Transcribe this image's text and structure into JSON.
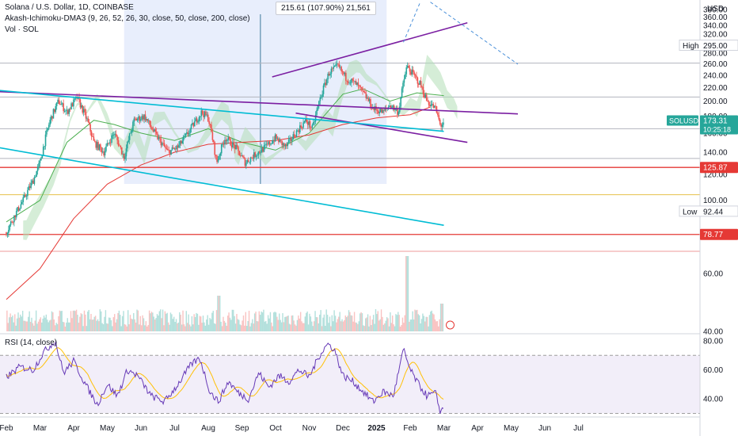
{
  "header": {
    "title": "Solana / U.S. Dollar, 1D, COINBASE",
    "indicator": "Akash-Ichimoku-DMA3 (9, 26, 52, 26, 30, close, 50, close, 200, close)",
    "volume": "Vol · SOL"
  },
  "measure_label": "215.61 (107.90%) 21,561",
  "currency": "USD",
  "rsi_label": "RSI (14, close)",
  "colors": {
    "up": "#26a69a",
    "down": "#ef5350",
    "cloud": "#b3dfb6",
    "ma50": "#4caf50",
    "ma200": "#e53935",
    "trend_purple": "#7b1fa2",
    "trend_cyan": "#00bcd4",
    "rsi_line": "#673ab7",
    "rsi_ma": "#ffc107",
    "highlight": "#e8eefc"
  },
  "chart_data": [
    {
      "type": "candlestick",
      "symbol": "SOLUSD",
      "ylabel": "USD",
      "ylim": [
        36,
        400
      ],
      "ytick_labels": [
        "40.00",
        "60.00",
        "80.00",
        "100.00",
        "120.00",
        "140.00",
        "160.00",
        "180.00",
        "200.00",
        "220.00",
        "240.00",
        "260.00",
        "280.00",
        "300.00",
        "320.00",
        "340.00",
        "360.00",
        "380.00"
      ],
      "x_labels": [
        "Feb",
        "Mar",
        "Apr",
        "May",
        "Jun",
        "Jul",
        "Aug",
        "Sep",
        "Oct",
        "Nov",
        "Dec",
        "2025",
        "Feb",
        "Mar",
        "Apr",
        "May",
        "Jun",
        "Jul"
      ],
      "price_points": [
        {
          "m": 0.0,
          "p": 80
        },
        {
          "m": 0.5,
          "p": 100
        },
        {
          "m": 0.8,
          "p": 115
        },
        {
          "m": 1.0,
          "p": 130
        },
        {
          "m": 1.3,
          "p": 175
        },
        {
          "m": 1.55,
          "p": 200
        },
        {
          "m": 1.8,
          "p": 185
        },
        {
          "m": 2.1,
          "p": 205
        },
        {
          "m": 2.4,
          "p": 175
        },
        {
          "m": 2.6,
          "p": 150
        },
        {
          "m": 2.9,
          "p": 140
        },
        {
          "m": 3.2,
          "p": 160
        },
        {
          "m": 3.5,
          "p": 135
        },
        {
          "m": 3.8,
          "p": 175
        },
        {
          "m": 4.1,
          "p": 180
        },
        {
          "m": 4.4,
          "p": 160
        },
        {
          "m": 4.8,
          "p": 140
        },
        {
          "m": 5.1,
          "p": 145
        },
        {
          "m": 5.4,
          "p": 160
        },
        {
          "m": 5.8,
          "p": 185
        },
        {
          "m": 6.0,
          "p": 178
        },
        {
          "m": 6.25,
          "p": 130
        },
        {
          "m": 6.5,
          "p": 155
        },
        {
          "m": 6.8,
          "p": 145
        },
        {
          "m": 7.1,
          "p": 130
        },
        {
          "m": 7.4,
          "p": 138
        },
        {
          "m": 7.7,
          "p": 145
        },
        {
          "m": 8.0,
          "p": 155
        },
        {
          "m": 8.3,
          "p": 145
        },
        {
          "m": 8.6,
          "p": 160
        },
        {
          "m": 8.9,
          "p": 175
        },
        {
          "m": 9.1,
          "p": 165
        },
        {
          "m": 9.3,
          "p": 200
        },
        {
          "m": 9.6,
          "p": 245
        },
        {
          "m": 9.85,
          "p": 255
        },
        {
          "m": 10.1,
          "p": 235
        },
        {
          "m": 10.4,
          "p": 225
        },
        {
          "m": 10.7,
          "p": 205
        },
        {
          "m": 10.9,
          "p": 190
        },
        {
          "m": 11.2,
          "p": 185
        },
        {
          "m": 11.4,
          "p": 195
        },
        {
          "m": 11.65,
          "p": 185
        },
        {
          "m": 11.9,
          "p": 255
        },
        {
          "m": 12.1,
          "p": 240
        },
        {
          "m": 12.3,
          "p": 225
        },
        {
          "m": 12.5,
          "p": 200
        },
        {
          "m": 12.75,
          "p": 190
        },
        {
          "m": 12.9,
          "p": 168
        },
        {
          "m": 13.0,
          "p": 173
        }
      ],
      "ma50_points": [
        {
          "m": 0,
          "p": 86
        },
        {
          "m": 1,
          "p": 100
        },
        {
          "m": 1.8,
          "p": 150
        },
        {
          "m": 2.6,
          "p": 175
        },
        {
          "m": 3.2,
          "p": 170
        },
        {
          "m": 4,
          "p": 160
        },
        {
          "m": 5,
          "p": 152
        },
        {
          "m": 6,
          "p": 165
        },
        {
          "m": 7,
          "p": 150
        },
        {
          "m": 8,
          "p": 142
        },
        {
          "m": 9,
          "p": 160
        },
        {
          "m": 10,
          "p": 210
        },
        {
          "m": 10.6,
          "p": 218
        },
        {
          "m": 11.4,
          "p": 200
        },
        {
          "m": 12.2,
          "p": 212
        },
        {
          "m": 13,
          "p": 208
        }
      ],
      "ma200_points": [
        {
          "m": 0,
          "p": 50
        },
        {
          "m": 1,
          "p": 62
        },
        {
          "m": 2,
          "p": 88
        },
        {
          "m": 3,
          "p": 112
        },
        {
          "m": 4,
          "p": 128
        },
        {
          "m": 5,
          "p": 140
        },
        {
          "m": 6,
          "p": 148
        },
        {
          "m": 7,
          "p": 150
        },
        {
          "m": 8,
          "p": 152
        },
        {
          "m": 9,
          "p": 158
        },
        {
          "m": 10,
          "p": 170
        },
        {
          "m": 11,
          "p": 178
        },
        {
          "m": 12,
          "p": 182
        },
        {
          "m": 12.6,
          "p": 192
        }
      ],
      "horizontal_levels": [
        {
          "price": 261,
          "color": "#b2b5be"
        },
        {
          "price": 206,
          "color": "#b2b5be"
        },
        {
          "price": 165,
          "color": "#b2b5be"
        },
        {
          "price": 134,
          "color": "#b2b5be"
        },
        {
          "price": 125.87,
          "color": "#e53935"
        },
        {
          "price": 104,
          "color": "#e6c14a"
        },
        {
          "price": 78.77,
          "color": "#e53935"
        },
        {
          "price": 70,
          "color": "#ef9a9a"
        }
      ],
      "trendlines": [
        {
          "color": "#7b1fa2",
          "from": {
            "m": -0.3,
            "p": 214
          },
          "to": {
            "m": 15.2,
            "p": 183
          }
        },
        {
          "color": "#7b1fa2",
          "from": {
            "m": 7.9,
            "p": 237
          },
          "to": {
            "m": 13.7,
            "p": 346
          }
        },
        {
          "color": "#7b1fa2",
          "from": {
            "m": 8.6,
            "p": 184
          },
          "to": {
            "m": 13.7,
            "p": 150
          }
        },
        {
          "color": "#00bcd4",
          "from": {
            "m": -0.3,
            "p": 216
          },
          "to": {
            "m": 13.0,
            "p": 162
          }
        },
        {
          "color": "#00bcd4",
          "from": {
            "m": -0.3,
            "p": 145
          },
          "to": {
            "m": 13.0,
            "p": 84
          }
        }
      ],
      "dashed_lines": [
        {
          "color": "#4a90d9",
          "from": {
            "m": 11.8,
            "p": 302
          },
          "to": {
            "m": 12.3,
            "p": 400
          }
        },
        {
          "color": "#4a90d9",
          "from": {
            "m": 12.6,
            "p": 400
          },
          "to": {
            "m": 15.2,
            "p": 259
          }
        }
      ],
      "highlight_range": {
        "from": 3.5,
        "to": 11.3
      },
      "measure_line_m": 7.55,
      "markers": [
        {
          "price": 295.0,
          "label": "High",
          "value": "295.00"
        },
        {
          "price": 92.44,
          "label": "Low",
          "value": "92.44"
        }
      ],
      "price_tags": [
        {
          "price": 125.87,
          "value": "125.87",
          "bg": "#e53935"
        },
        {
          "price": 78.77,
          "value": "78.77",
          "bg": "#e53935"
        }
      ],
      "last_price": {
        "symbol": "SOLUSD",
        "value": "173.31",
        "countdown": "10:25:18",
        "bg": "#26a69a"
      }
    },
    {
      "type": "line",
      "name": "RSI (14, close)",
      "ylim": [
        30,
        82
      ],
      "ytick_labels": [
        "40.00",
        "60.00",
        "80.00"
      ],
      "upper_band": 70,
      "lower_band": 30,
      "rsi_points": [
        {
          "m": 0,
          "p": 55
        },
        {
          "m": 0.4,
          "p": 62
        },
        {
          "m": 0.8,
          "p": 60
        },
        {
          "m": 1.1,
          "p": 72
        },
        {
          "m": 1.45,
          "p": 80
        },
        {
          "m": 1.7,
          "p": 58
        },
        {
          "m": 2.0,
          "p": 66
        },
        {
          "m": 2.4,
          "p": 48
        },
        {
          "m": 2.7,
          "p": 36
        },
        {
          "m": 3.0,
          "p": 50
        },
        {
          "m": 3.3,
          "p": 42
        },
        {
          "m": 3.6,
          "p": 60
        },
        {
          "m": 3.9,
          "p": 56
        },
        {
          "m": 4.3,
          "p": 42
        },
        {
          "m": 4.7,
          "p": 38
        },
        {
          "m": 5.1,
          "p": 50
        },
        {
          "m": 5.5,
          "p": 64
        },
        {
          "m": 5.75,
          "p": 68
        },
        {
          "m": 6.05,
          "p": 45
        },
        {
          "m": 6.3,
          "p": 38
        },
        {
          "m": 6.6,
          "p": 52
        },
        {
          "m": 6.9,
          "p": 44
        },
        {
          "m": 7.2,
          "p": 40
        },
        {
          "m": 7.5,
          "p": 58
        },
        {
          "m": 7.8,
          "p": 48
        },
        {
          "m": 8.1,
          "p": 56
        },
        {
          "m": 8.4,
          "p": 52
        },
        {
          "m": 8.7,
          "p": 60
        },
        {
          "m": 9.0,
          "p": 55
        },
        {
          "m": 9.3,
          "p": 70
        },
        {
          "m": 9.55,
          "p": 78
        },
        {
          "m": 9.75,
          "p": 74
        },
        {
          "m": 10.0,
          "p": 56
        },
        {
          "m": 10.3,
          "p": 52
        },
        {
          "m": 10.6,
          "p": 45
        },
        {
          "m": 10.9,
          "p": 38
        },
        {
          "m": 11.2,
          "p": 45
        },
        {
          "m": 11.5,
          "p": 42
        },
        {
          "m": 11.8,
          "p": 74
        },
        {
          "m": 12.0,
          "p": 60
        },
        {
          "m": 12.25,
          "p": 50
        },
        {
          "m": 12.5,
          "p": 42
        },
        {
          "m": 12.75,
          "p": 44
        },
        {
          "m": 12.9,
          "p": 31
        },
        {
          "m": 13.0,
          "p": 34
        }
      ]
    }
  ]
}
